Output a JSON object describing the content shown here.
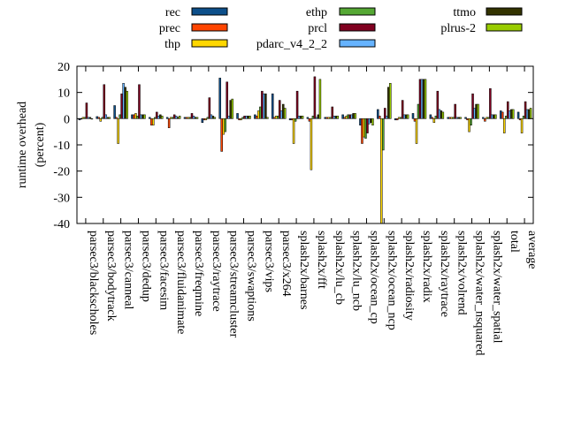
{
  "chart_data": {
    "type": "bar",
    "ylabel_lines": [
      "runtime overhead",
      "(percent)"
    ],
    "xlabel": "",
    "ylim": [
      -40,
      20
    ],
    "yticks": [
      -40,
      -30,
      -20,
      -10,
      0,
      10,
      20
    ],
    "grid": false,
    "legend_position": "top",
    "categories": [
      "parsec3/blackscholes",
      "parsec3/bodytrack",
      "parsec3/canneal",
      "parsec3/dedup",
      "parsec3/facesim",
      "parsec3/fluidanimate",
      "parsec3/freqmine",
      "parsec3/raytrace",
      "parsec3/streamcluster",
      "parsec3/swaptions",
      "parsec3/vips",
      "parsec3/x264",
      "splash2x/barnes",
      "splash2x/fft",
      "splash2x/lu_cb",
      "splash2x/lu_ncb",
      "splash2x/ocean_cp",
      "splash2x/ocean_ncp",
      "splash2x/radiosity",
      "splash2x/radix",
      "splash2x/raytrace",
      "splash2x/volrend",
      "splash2x/water_nsquared",
      "splash2x/water_spatial",
      "total",
      "average"
    ],
    "series": [
      {
        "name": "rec",
        "color": "#0d4f8a",
        "values": [
          -0.5,
          0.8,
          5,
          1.5,
          0.5,
          0.5,
          0.5,
          -1.5,
          15.5,
          2,
          1.5,
          9.5,
          -0.5,
          0.5,
          0.5,
          1.5,
          -2.5,
          3.5,
          -0.5,
          2,
          1.5,
          0.5,
          0.5,
          0.5,
          3,
          2.5
        ]
      },
      {
        "name": "prec",
        "color": "#ff4500",
        "values": [
          0,
          0.5,
          0.5,
          1.5,
          -2.5,
          -3.5,
          0.5,
          -0.5,
          -12.5,
          -0.5,
          1,
          0.5,
          -0.5,
          -1,
          0.5,
          0.5,
          -9.5,
          1,
          -0.5,
          -1,
          0.5,
          0.5,
          -0.5,
          -1,
          2.5,
          -0.5
        ]
      },
      {
        "name": "thp",
        "color": "#ffd700",
        "values": [
          0.5,
          -1,
          -9.5,
          2,
          -2.5,
          0.5,
          0.5,
          -0.5,
          -6,
          -0.5,
          3,
          1,
          -9.5,
          -19.5,
          0.5,
          1,
          -7,
          -40,
          0.5,
          -9.5,
          -1.5,
          0.5,
          -5,
          0.5,
          -5.5,
          -5.5
        ]
      },
      {
        "name": "ethp",
        "color": "#55a834",
        "values": [
          0.5,
          0.5,
          1.5,
          1,
          0.5,
          0.5,
          0.5,
          0.5,
          -5,
          0.5,
          4.5,
          1,
          -1,
          1,
          0.5,
          1.5,
          -7.5,
          -12,
          0.5,
          5.5,
          1,
          0.5,
          -2.5,
          0.5,
          1,
          1
        ]
      },
      {
        "name": "prcl",
        "color": "#800020",
        "values": [
          6,
          13,
          9.5,
          13,
          2.5,
          1.5,
          2,
          8,
          14,
          1,
          10.5,
          7,
          10.5,
          16,
          4.5,
          1.5,
          -5.5,
          4,
          7,
          15,
          10.5,
          5.5,
          9.5,
          11.5,
          6.5,
          6.5
        ]
      },
      {
        "name": "pdarc_v4_2_2",
        "color": "#66b3ff",
        "values": [
          0.5,
          1.5,
          13.5,
          1.5,
          1,
          1,
          1,
          1.5,
          1,
          1,
          9.5,
          3,
          1,
          0.5,
          1,
          1.5,
          -2,
          1,
          1.5,
          15,
          3.5,
          0.5,
          4,
          1.5,
          3,
          3.5
        ]
      },
      {
        "name": "ttmo",
        "color": "#333300",
        "values": [
          0.5,
          0.5,
          12,
          1.5,
          1.5,
          0.5,
          0.5,
          1,
          7,
          1,
          9.5,
          5.5,
          1,
          1.5,
          1,
          2,
          -1.5,
          12,
          1.5,
          15,
          3,
          0.5,
          5.5,
          1.5,
          3.5,
          3.5
        ]
      },
      {
        "name": "plrus-2",
        "color": "#99cc00",
        "values": [
          0,
          0.5,
          10.5,
          1.5,
          1,
          1,
          0.5,
          0.5,
          7.5,
          1,
          0.5,
          4,
          1,
          15,
          1,
          2,
          -2.5,
          13.5,
          1.5,
          15,
          2.5,
          0.5,
          5.5,
          1.5,
          3.5,
          4
        ]
      }
    ]
  }
}
